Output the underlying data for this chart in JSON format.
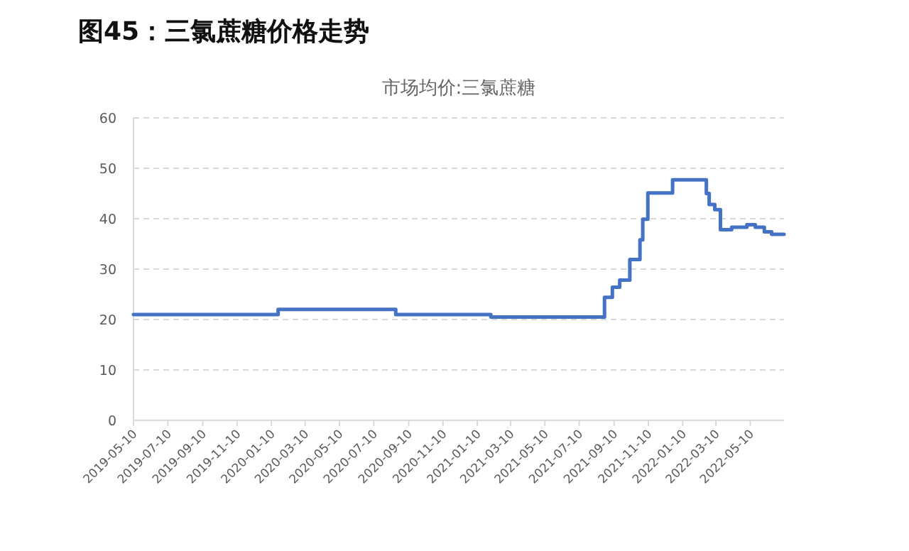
{
  "chart_data": {
    "type": "step",
    "title": "图45：三氯蔗糖价格走势",
    "subtitle": "市场均价:三氯蔗糖",
    "x": [
      "2019-05-10",
      "2020-01-22",
      "2020-08-18",
      "2021-02-03",
      "2021-08-24",
      "2021-09-07",
      "2021-09-20",
      "2021-10-08",
      "2021-10-26",
      "2021-10-31",
      "2021-11-09",
      "2021-12-23",
      "2022-02-16",
      "2022-02-21",
      "2022-02-26",
      "2022-03-08",
      "2022-03-18",
      "2022-04-07",
      "2022-05-04",
      "2022-05-19",
      "2022-06-04",
      "2022-06-17",
      "2022-07-09"
    ],
    "values": [
      21,
      22,
      21,
      20.5,
      24.4,
      26.4,
      27.8,
      31.9,
      35.8,
      39.9,
      45.1,
      47.7,
      47.7,
      45,
      42.8,
      41.8,
      37.8,
      38.3,
      38.8,
      38.3,
      37.4,
      36.9,
      36.9
    ],
    "color": "#4472c4",
    "xlim": [
      "2019-05-10",
      "2022-07-09"
    ],
    "xticks": [
      "2019-05-10",
      "2019-07-10",
      "2019-09-10",
      "2019-11-10",
      "2020-01-10",
      "2020-03-10",
      "2020-05-10",
      "2020-07-10",
      "2020-09-10",
      "2020-11-10",
      "2021-01-10",
      "2021-03-10",
      "2021-05-10",
      "2021-07-10",
      "2021-09-10",
      "2021-11-10",
      "2022-01-10",
      "2022-03-10",
      "2022-05-10"
    ],
    "ylim": [
      0,
      60
    ],
    "yticks": [
      0,
      10,
      20,
      30,
      40,
      50,
      60
    ],
    "grid": "y",
    "marker": "none",
    "line_style": "solid"
  }
}
